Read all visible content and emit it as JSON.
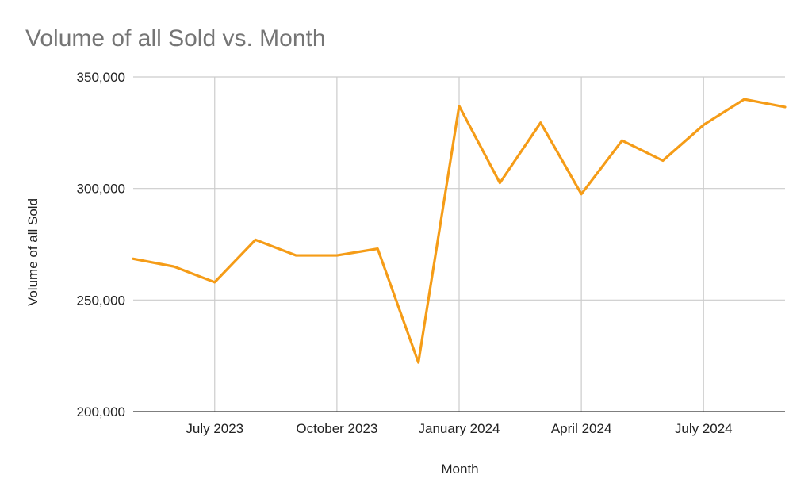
{
  "chart_data": {
    "type": "line",
    "title": "Volume of all Sold vs. Month",
    "xlabel": "Month",
    "ylabel": "Volume of all Sold",
    "ylim": [
      200000,
      350000
    ],
    "yticks": [
      200000,
      250000,
      300000,
      350000
    ],
    "ytick_labels": [
      "200,000",
      "250,000",
      "300,000",
      "350,000"
    ],
    "x": [
      "2023-05",
      "2023-06",
      "2023-07",
      "2023-08",
      "2023-09",
      "2023-10",
      "2023-11",
      "2023-12",
      "2024-01",
      "2024-02",
      "2024-03",
      "2024-04",
      "2024-05",
      "2024-06",
      "2024-07",
      "2024-08",
      "2024-09"
    ],
    "xticks": [
      "2023-07",
      "2023-10",
      "2024-01",
      "2024-04",
      "2024-07"
    ],
    "xtick_labels": [
      "July 2023",
      "October 2023",
      "January 2024",
      "April 2024",
      "July 2024"
    ],
    "series": [
      {
        "color": "#f59c17",
        "values": [
          268500,
          265000,
          258000,
          277000,
          270000,
          270000,
          273000,
          222000,
          337000,
          302500,
          329500,
          297500,
          321500,
          312500,
          328500,
          340000,
          336500
        ]
      }
    ],
    "grid": true
  }
}
